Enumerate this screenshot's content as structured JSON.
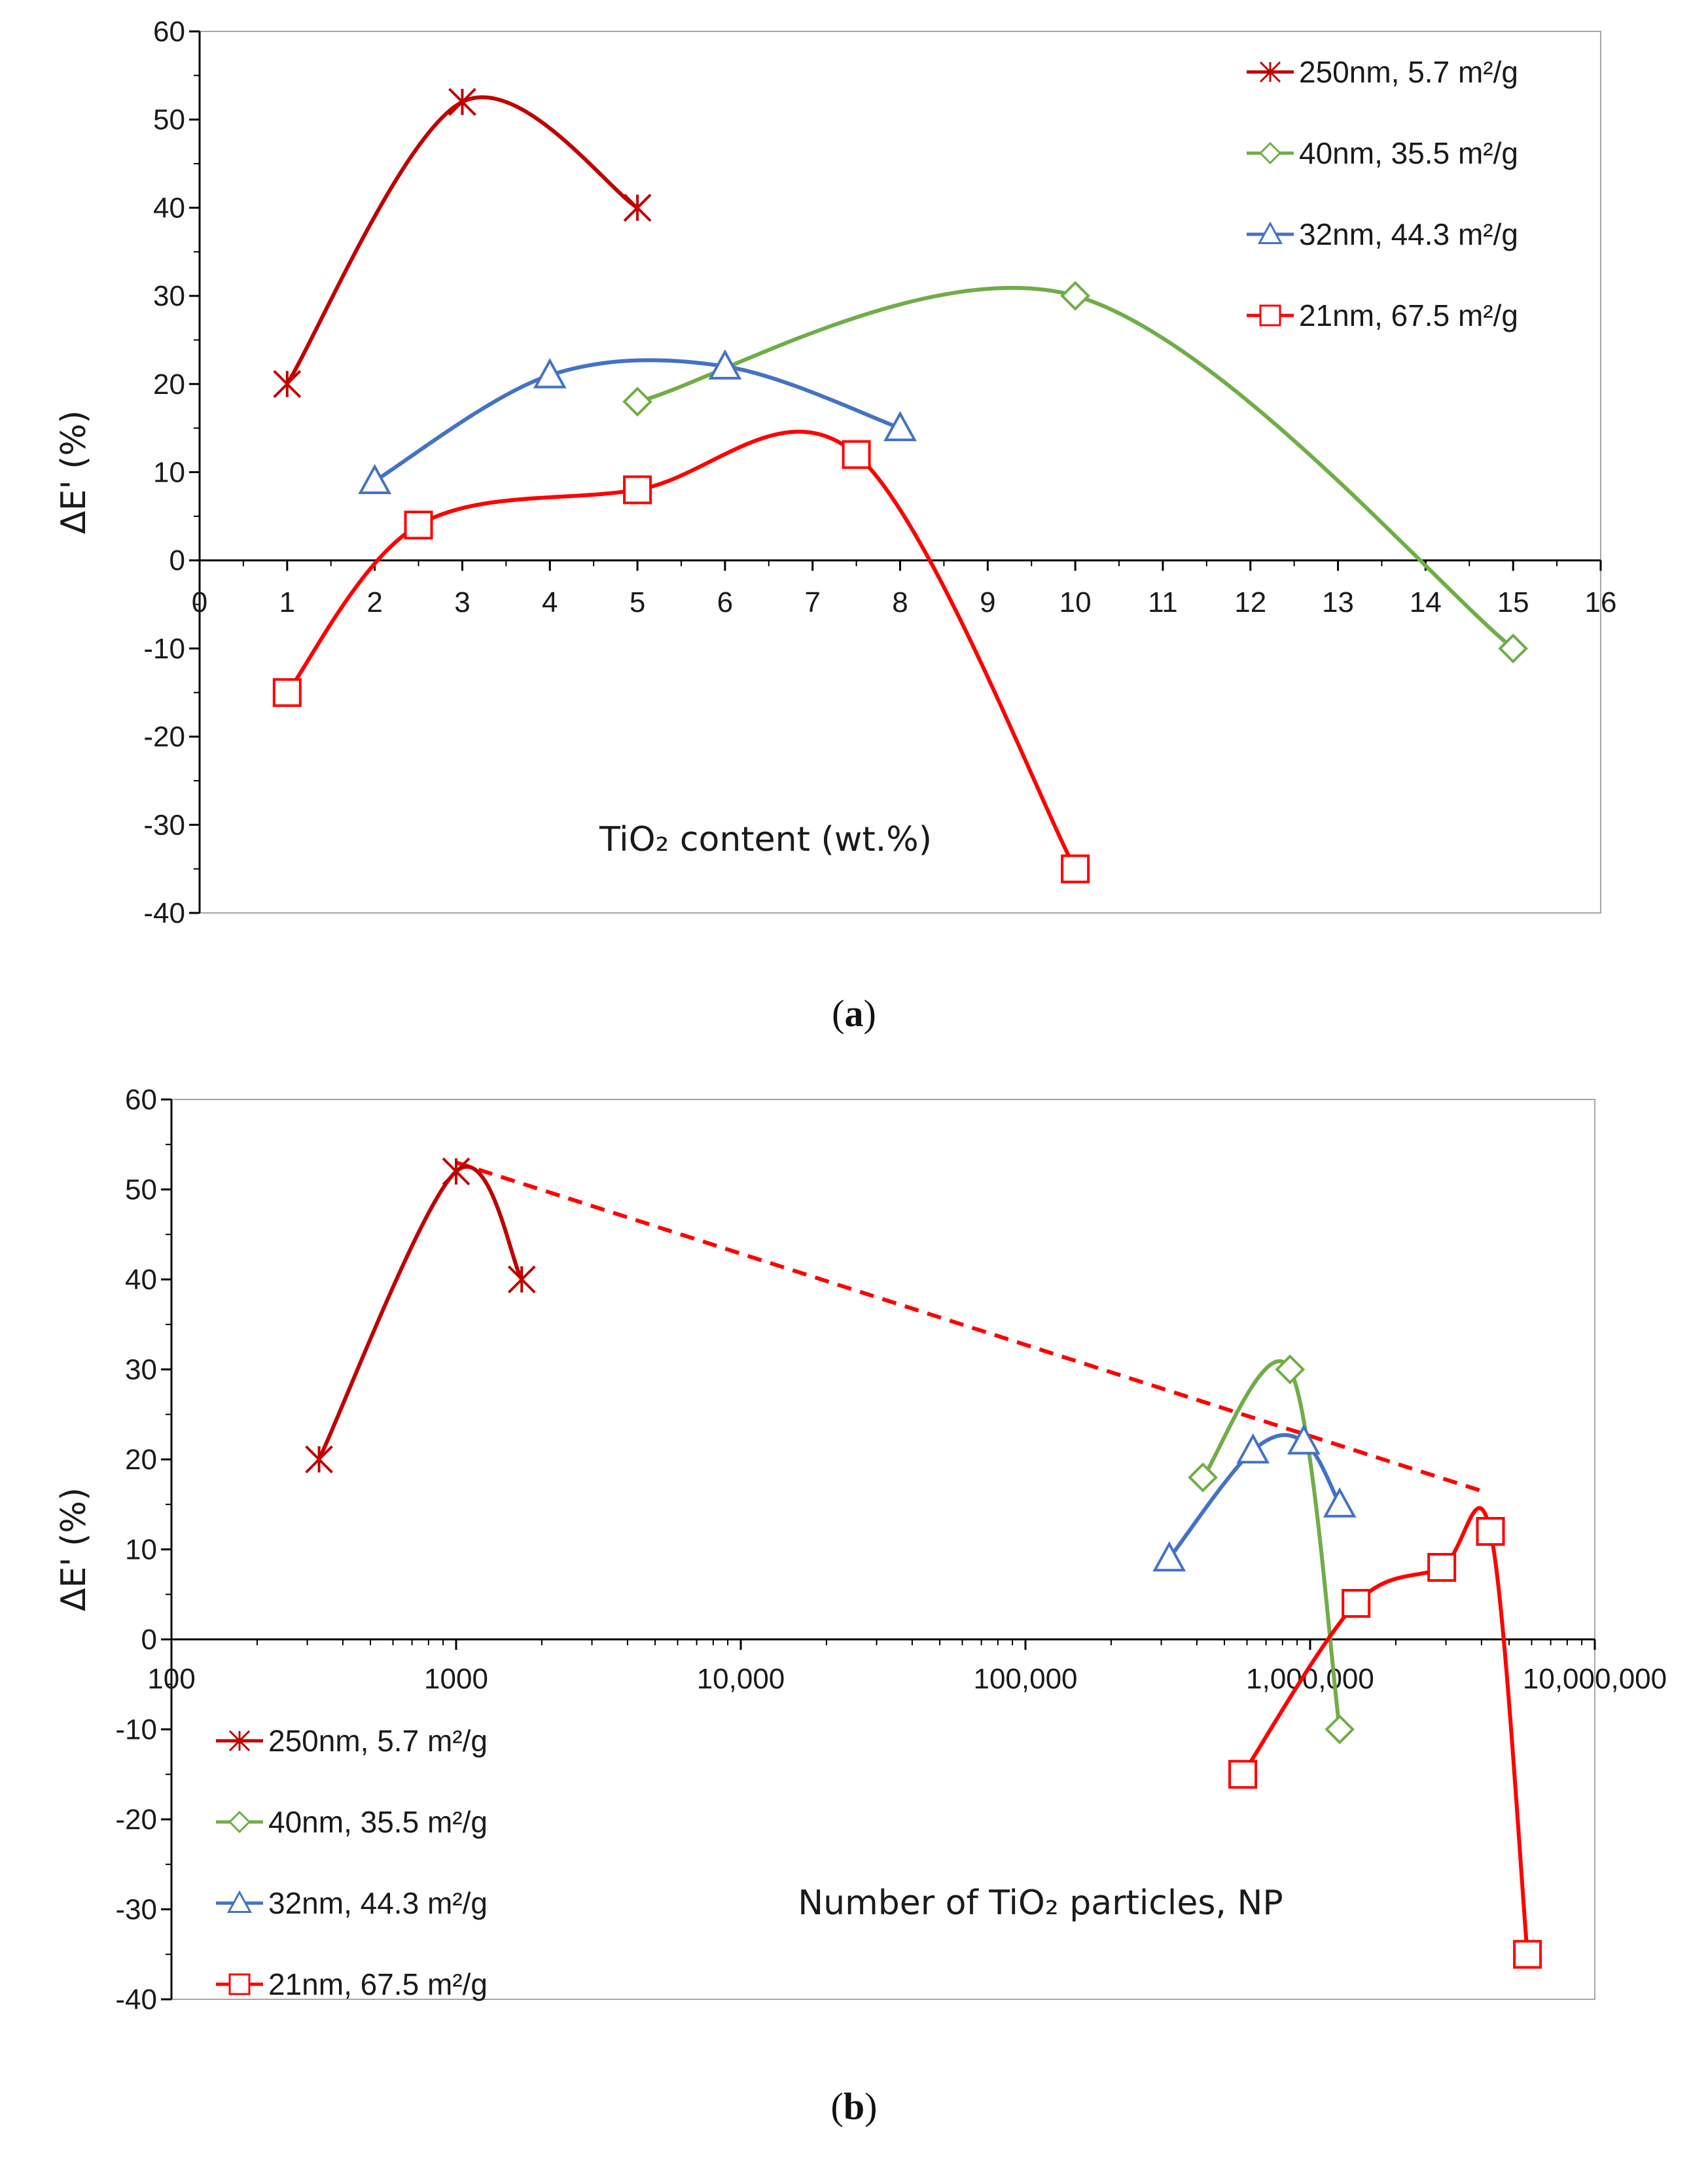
{
  "chart_data": [
    {
      "panel": "a",
      "type": "line",
      "ylabel": "ΔE' (%)",
      "xlabel": "TiO₂  content (wt.%)",
      "panel_label": "a",
      "xlim": [
        0,
        16
      ],
      "ylim": [
        -40,
        60
      ],
      "x_ticks": [
        "0",
        "1",
        "2",
        "3",
        "4",
        "5",
        "6",
        "7",
        "8",
        "9",
        "10",
        "11",
        "12",
        "13",
        "14",
        "15",
        "16"
      ],
      "y_ticks": [
        "60",
        "50",
        "40",
        "30",
        "20",
        "10",
        "0",
        "-10",
        "-20",
        "-30",
        "-40"
      ],
      "legend_position": "top-right",
      "series": [
        {
          "name": "250nm, 5.7 m²/g",
          "color": "#C00000",
          "marker": "star",
          "x": [
            1,
            3,
            5
          ],
          "y": [
            20,
            52,
            40
          ]
        },
        {
          "name": "40nm, 35.5 m²/g",
          "color": "#70AD47",
          "marker": "diamond",
          "x": [
            5,
            10,
            15
          ],
          "y": [
            18,
            30,
            -10
          ]
        },
        {
          "name": "32nm, 44.3 m²/g",
          "color": "#4472C4",
          "marker": "triangle",
          "x": [
            2,
            4,
            6,
            8
          ],
          "y": [
            9,
            21,
            22,
            15
          ]
        },
        {
          "name": "21nm, 67.5 m²/g",
          "color": "#FF0000",
          "marker": "square",
          "x": [
            1,
            2.5,
            5,
            7.5,
            10
          ],
          "y": [
            -15,
            4,
            8,
            12,
            -35
          ]
        }
      ]
    },
    {
      "panel": "b",
      "type": "line",
      "xscale": "log",
      "ylabel": "ΔE' (%)",
      "xlabel": "Number of TiO₂  particles, NP",
      "panel_label": "b",
      "xlim": [
        100,
        10000000
      ],
      "ylim": [
        -40,
        60
      ],
      "x_ticks": [
        "100",
        "1000",
        "10,000",
        "100,000",
        "1,000,000",
        "10,000,000"
      ],
      "y_ticks": [
        "60",
        "50",
        "40",
        "30",
        "20",
        "10",
        "0",
        "-10",
        "-20",
        "-30",
        "-40"
      ],
      "legend_position": "bottom-left",
      "series": [
        {
          "name": "250nm, 5.7 m²/g",
          "color": "#C00000",
          "marker": "star",
          "x": [
            330,
            1000,
            1700
          ],
          "y": [
            20,
            52,
            40
          ]
        },
        {
          "name": "40nm, 35.5 m²/g",
          "color": "#70AD47",
          "marker": "diamond",
          "x": [
            420000,
            850000,
            1270000
          ],
          "y": [
            18,
            30,
            -10
          ]
        },
        {
          "name": "32nm, 44.3 m²/g",
          "color": "#4472C4",
          "marker": "triangle",
          "x": [
            320000,
            630000,
            950000,
            1270000
          ],
          "y": [
            9,
            21,
            22,
            15
          ]
        },
        {
          "name": "21nm, 67.5 m²/g",
          "color": "#FF0000",
          "marker": "square",
          "x": [
            580000,
            1450000,
            2900000,
            4300000,
            5800000
          ],
          "y": [
            -15,
            4,
            8,
            12,
            -35
          ]
        }
      ],
      "trend_line": {
        "style": "dashed",
        "color": "#FF0000",
        "x": [
          1000,
          4000000
        ],
        "y": [
          53,
          16.5
        ]
      }
    }
  ]
}
